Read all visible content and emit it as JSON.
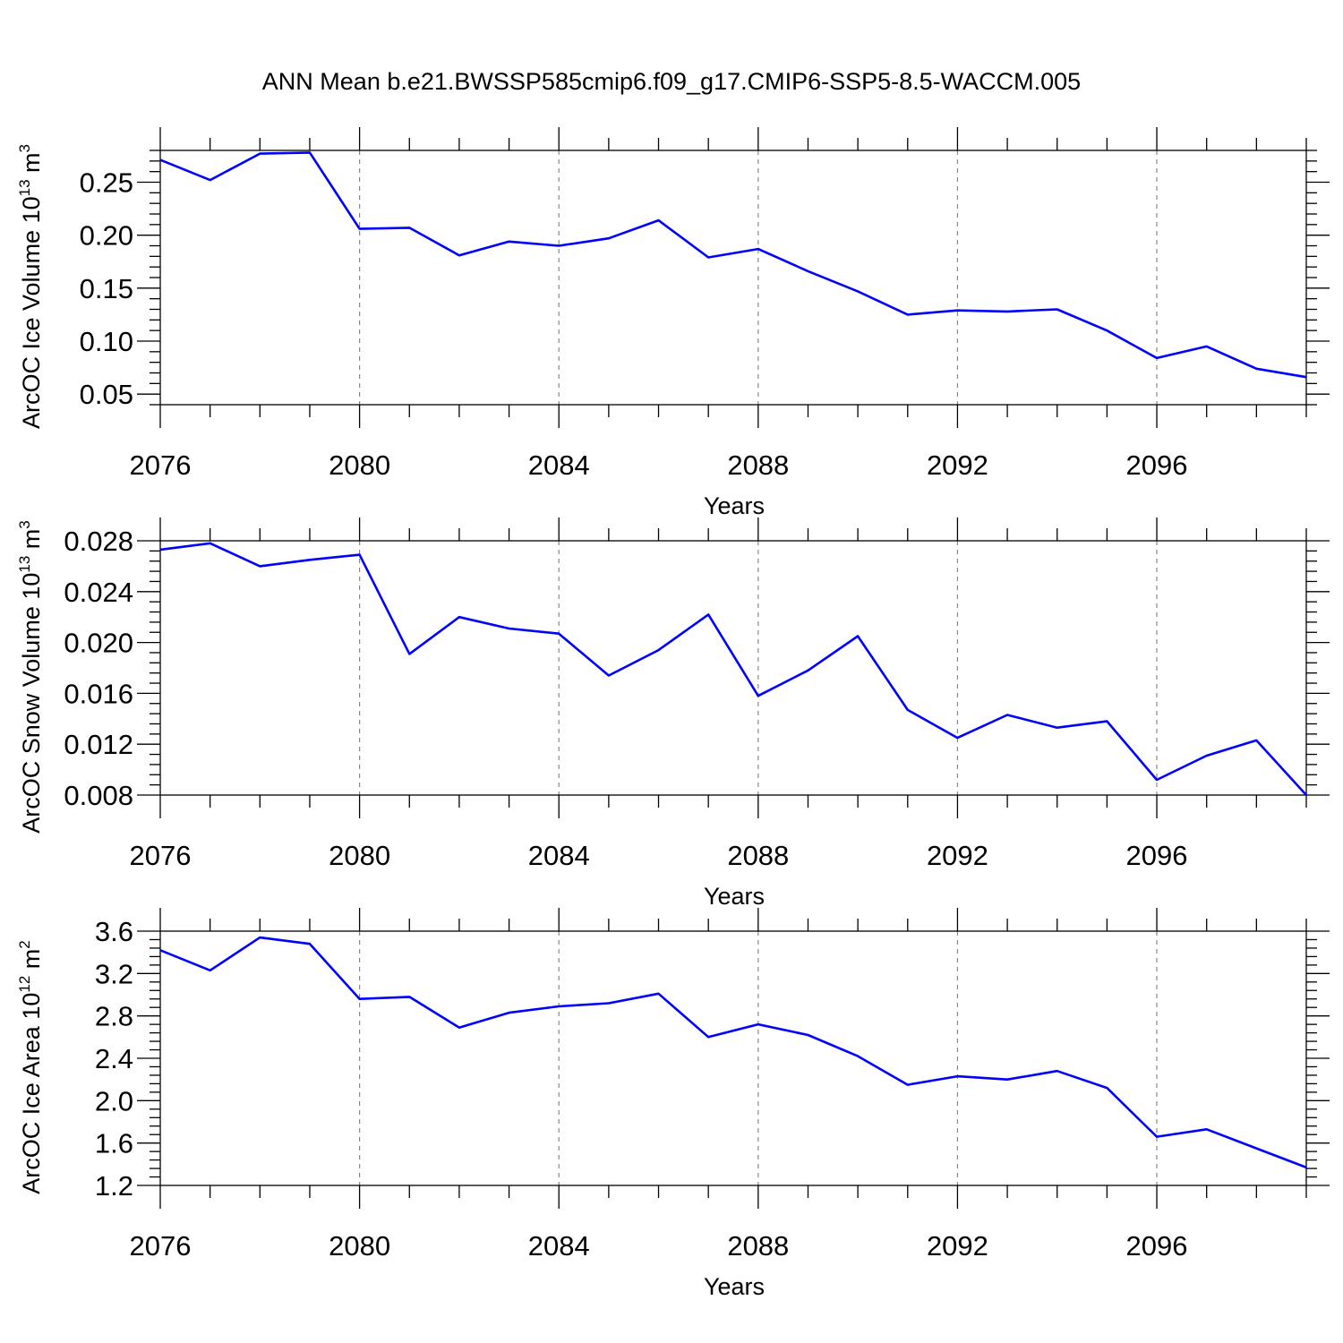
{
  "title": "ANN Mean b.e21.BWSSP585cmip6.f09_g17.CMIP6-SSP5-8.5-WACCM.005",
  "colors": {
    "line": "#0000ff",
    "axis": "#000000",
    "grid": "#888888"
  },
  "chart_data": [
    {
      "type": "line",
      "xlabel": "Years",
      "ylabel": {
        "text": "ArcOC Ice Volume 10",
        "exp": "13",
        "unit": " m",
        "unit_exp": "3"
      },
      "xlim": [
        2076,
        2099
      ],
      "ylim": [
        0.04,
        0.28
      ],
      "xticks": [
        2076,
        2080,
        2084,
        2088,
        2092,
        2096
      ],
      "yticks": [
        0.05,
        0.1,
        0.15,
        0.2,
        0.25
      ],
      "ytick_labels": [
        "0.05",
        "0.10",
        "0.15",
        "0.20",
        "0.25"
      ],
      "grid": "vertical dashed at major x ticks",
      "series": [
        {
          "x": [
            2076,
            2077,
            2078,
            2079,
            2080,
            2081,
            2082,
            2083,
            2084,
            2085,
            2086,
            2087,
            2088,
            2089,
            2090,
            2091,
            2092,
            2093,
            2094,
            2095,
            2096,
            2097,
            2098,
            2099
          ],
          "values": [
            0.271,
            0.252,
            0.277,
            0.278,
            0.206,
            0.207,
            0.181,
            0.194,
            0.19,
            0.197,
            0.214,
            0.179,
            0.187,
            0.166,
            0.147,
            0.125,
            0.129,
            0.128,
            0.13,
            0.11,
            0.084,
            0.095,
            0.074,
            0.066
          ]
        }
      ]
    },
    {
      "type": "line",
      "xlabel": "Years",
      "ylabel": {
        "text": "ArcOC Snow Volume 10",
        "exp": "13",
        "unit": " m",
        "unit_exp": "3"
      },
      "xlim": [
        2076,
        2099
      ],
      "ylim": [
        0.008,
        0.028
      ],
      "xticks": [
        2076,
        2080,
        2084,
        2088,
        2092,
        2096
      ],
      "yticks": [
        0.008,
        0.012,
        0.016,
        0.02,
        0.024,
        0.028
      ],
      "ytick_labels": [
        "0.008",
        "0.012",
        "0.016",
        "0.020",
        "0.024",
        "0.028"
      ],
      "grid": "vertical dashed at major x ticks",
      "series": [
        {
          "x": [
            2076,
            2077,
            2078,
            2079,
            2080,
            2081,
            2082,
            2083,
            2084,
            2085,
            2086,
            2087,
            2088,
            2089,
            2090,
            2091,
            2092,
            2093,
            2094,
            2095,
            2096,
            2097,
            2098,
            2099
          ],
          "values": [
            0.0273,
            0.0278,
            0.026,
            0.0265,
            0.0269,
            0.0191,
            0.022,
            0.0211,
            0.0207,
            0.0174,
            0.0194,
            0.0222,
            0.0158,
            0.0178,
            0.0205,
            0.0147,
            0.0125,
            0.0143,
            0.0133,
            0.0138,
            0.0092,
            0.0111,
            0.0123,
            0.008
          ]
        }
      ]
    },
    {
      "type": "line",
      "xlabel": "Years",
      "ylabel": {
        "text": "ArcOC Ice Area 10",
        "exp": "12",
        "unit": " m",
        "unit_exp": "2"
      },
      "xlim": [
        2076,
        2099
      ],
      "ylim": [
        1.2,
        3.6
      ],
      "xticks": [
        2076,
        2080,
        2084,
        2088,
        2092,
        2096
      ],
      "yticks": [
        1.2,
        1.6,
        2.0,
        2.4,
        2.8,
        3.2,
        3.6
      ],
      "ytick_labels": [
        "1.2",
        "1.6",
        "2.0",
        "2.4",
        "2.8",
        "3.2",
        "3.6"
      ],
      "grid": "vertical dashed at major x ticks",
      "series": [
        {
          "x": [
            2076,
            2077,
            2078,
            2079,
            2080,
            2081,
            2082,
            2083,
            2084,
            2085,
            2086,
            2087,
            2088,
            2089,
            2090,
            2091,
            2092,
            2093,
            2094,
            2095,
            2096,
            2097,
            2098,
            2099
          ],
          "values": [
            3.42,
            3.23,
            3.54,
            3.48,
            2.96,
            2.98,
            2.69,
            2.83,
            2.89,
            2.92,
            3.01,
            2.6,
            2.72,
            2.62,
            2.42,
            2.15,
            2.23,
            2.2,
            2.28,
            2.12,
            1.66,
            1.73,
            1.55,
            1.37
          ]
        }
      ]
    }
  ]
}
